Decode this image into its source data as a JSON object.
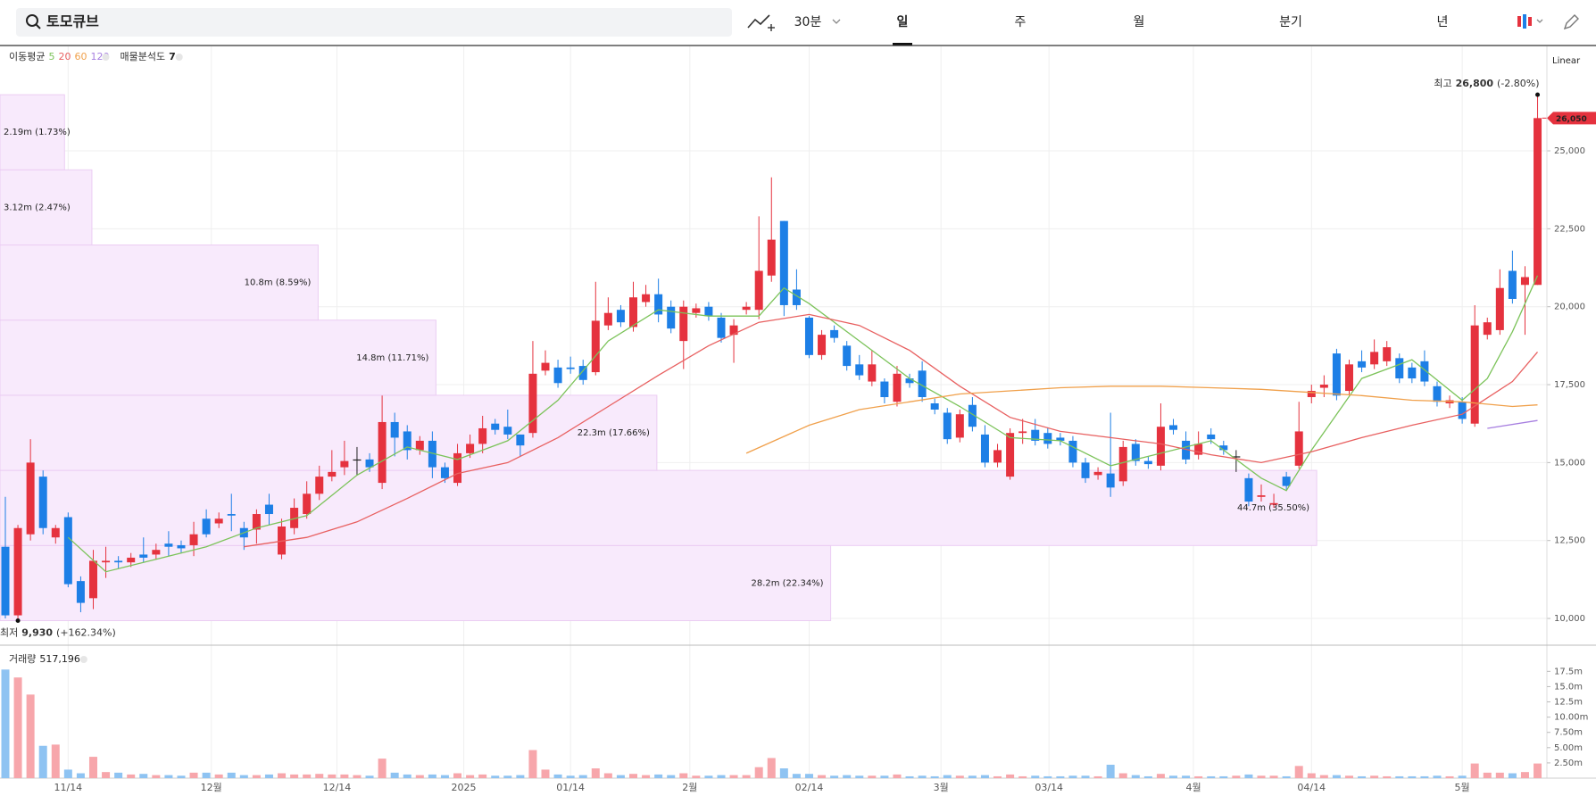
{
  "toolbar": {
    "search": "토모큐브",
    "intervals": [
      "30분",
      "일",
      "주",
      "월",
      "분기",
      "년"
    ],
    "selected": 1
  },
  "chart_data": [
    {
      "type": "candlestick",
      "scale": "Linear",
      "up_color": "#e5323e",
      "down_color": "#1d7fe6",
      "ylim": [
        9200,
        28350
      ],
      "yticks": [
        {
          "value": 10000,
          "label": "10,000"
        },
        {
          "value": 12500,
          "label": "12,500"
        },
        {
          "value": 15000,
          "label": "15,000"
        },
        {
          "value": 17500,
          "label": "17,500"
        },
        {
          "value": 20000,
          "label": "20,000"
        },
        {
          "value": 22500,
          "label": "22,500"
        },
        {
          "value": 25000,
          "label": "25,000"
        }
      ],
      "xticks": [
        {
          "value": 5.0,
          "label": "11/14"
        },
        {
          "value": 16.4,
          "label": "12월"
        },
        {
          "value": 26.4,
          "label": "12/14"
        },
        {
          "value": 36.5,
          "label": "2025"
        },
        {
          "value": 45.0,
          "label": "01/14"
        },
        {
          "value": 54.5,
          "label": "2월"
        },
        {
          "value": 64.0,
          "label": "02/14"
        },
        {
          "value": 74.5,
          "label": "3월"
        },
        {
          "value": 83.1,
          "label": "03/14"
        },
        {
          "value": 94.6,
          "label": "4월"
        },
        {
          "value": 104.0,
          "label": "04/14"
        },
        {
          "value": 116.0,
          "label": "5월"
        }
      ],
      "grid": true,
      "values": [
        [
          12300,
          13900,
          10000,
          10100
        ],
        [
          10100,
          13000,
          9930,
          12900
        ],
        [
          12700,
          15750,
          12500,
          15000
        ],
        [
          14550,
          14750,
          12700,
          12900
        ],
        [
          12600,
          13000,
          12400,
          12900
        ],
        [
          13250,
          13400,
          11000,
          11100
        ],
        [
          11200,
          11350,
          10200,
          10500
        ],
        [
          10650,
          12200,
          10300,
          11850
        ],
        [
          11800,
          12300,
          11300,
          11850
        ],
        [
          11850,
          12000,
          11600,
          11800
        ],
        [
          11800,
          12100,
          11650,
          11950
        ],
        [
          12050,
          12600,
          11800,
          11950
        ],
        [
          12050,
          12400,
          11900,
          12200
        ],
        [
          12400,
          12800,
          12000,
          12300
        ],
        [
          12350,
          12500,
          12100,
          12250
        ],
        [
          12350,
          13100,
          12000,
          12700
        ],
        [
          13200,
          13500,
          12600,
          12700
        ],
        [
          13050,
          13400,
          12900,
          13200
        ],
        [
          13350,
          14000,
          12800,
          13300
        ],
        [
          12900,
          13100,
          12200,
          12600
        ],
        [
          12850,
          13500,
          12400,
          13350
        ],
        [
          13650,
          14000,
          13000,
          13350
        ],
        [
          12050,
          13200,
          11900,
          12950
        ],
        [
          12900,
          13850,
          12700,
          13550
        ],
        [
          13350,
          14400,
          13200,
          14000
        ],
        [
          14000,
          14900,
          13800,
          14550
        ],
        [
          14550,
          15400,
          14400,
          14700
        ],
        [
          14850,
          15700,
          14600,
          15050
        ],
        [
          15100,
          15500,
          14600,
          15100
        ],
        [
          15100,
          15300,
          14700,
          14850
        ],
        [
          14350,
          17150,
          14150,
          16300
        ],
        [
          16300,
          16600,
          15200,
          15800
        ],
        [
          16000,
          16200,
          15100,
          15400
        ],
        [
          15400,
          15850,
          15250,
          15700
        ],
        [
          15700,
          16000,
          14500,
          14850
        ],
        [
          14850,
          15000,
          14350,
          14500
        ],
        [
          14350,
          15600,
          14250,
          15300
        ],
        [
          15300,
          15900,
          15150,
          15600
        ],
        [
          15600,
          16500,
          15300,
          16100
        ],
        [
          16250,
          16400,
          15900,
          16050
        ],
        [
          16150,
          16700,
          15750,
          15900
        ],
        [
          15900,
          15900,
          15200,
          15550
        ],
        [
          15950,
          18900,
          15800,
          17850
        ],
        [
          17950,
          18600,
          17800,
          18200
        ],
        [
          18050,
          18300,
          17400,
          17550
        ],
        [
          18050,
          18400,
          17850,
          18000
        ],
        [
          18100,
          18300,
          17500,
          17650
        ],
        [
          17900,
          20800,
          17800,
          19550
        ],
        [
          19400,
          20300,
          19250,
          19800
        ],
        [
          19900,
          20050,
          19350,
          19500
        ],
        [
          19350,
          20800,
          19200,
          20300
        ],
        [
          20150,
          20700,
          20000,
          20400
        ],
        [
          20400,
          20900,
          19500,
          19750
        ],
        [
          20000,
          20200,
          19150,
          19300
        ],
        [
          18900,
          20200,
          18000,
          20000
        ],
        [
          19800,
          20100,
          19650,
          19950
        ],
        [
          20000,
          20150,
          19550,
          19700
        ],
        [
          19650,
          19800,
          18850,
          19000
        ],
        [
          19100,
          19600,
          18200,
          19400
        ],
        [
          19900,
          20150,
          19750,
          20000
        ],
        [
          19900,
          22900,
          19600,
          21150
        ],
        [
          21000,
          24150,
          20800,
          22150
        ],
        [
          22750,
          22750,
          19700,
          20050
        ],
        [
          20550,
          21200,
          19900,
          20050
        ],
        [
          19650,
          19700,
          18350,
          18450
        ],
        [
          18450,
          19250,
          18300,
          19100
        ],
        [
          19250,
          19400,
          18850,
          19000
        ],
        [
          18750,
          18900,
          17950,
          18100
        ],
        [
          18150,
          18450,
          17650,
          17800
        ],
        [
          17600,
          18600,
          17450,
          18150
        ],
        [
          17600,
          17700,
          16900,
          17100
        ],
        [
          16950,
          18100,
          16800,
          17850
        ],
        [
          17700,
          17850,
          17400,
          17550
        ],
        [
          17950,
          18250,
          16950,
          17100
        ],
        [
          16900,
          17050,
          16550,
          16700
        ],
        [
          16600,
          16750,
          15600,
          15750
        ],
        [
          15800,
          16700,
          15650,
          16550
        ],
        [
          16850,
          17100,
          16000,
          16150
        ],
        [
          15900,
          16200,
          14850,
          15000
        ],
        [
          15000,
          15600,
          14850,
          15400
        ],
        [
          14550,
          16100,
          14450,
          15950
        ],
        [
          15950,
          16400,
          15600,
          16000
        ],
        [
          16050,
          16400,
          15550,
          15700
        ],
        [
          15950,
          16100,
          15450,
          15600
        ],
        [
          15800,
          15950,
          15550,
          15700
        ],
        [
          15700,
          15850,
          14850,
          15000
        ],
        [
          15000,
          15150,
          14350,
          14500
        ],
        [
          14600,
          14850,
          14450,
          14700
        ],
        [
          14650,
          16600,
          13900,
          14200
        ],
        [
          14400,
          15700,
          14250,
          15500
        ],
        [
          15600,
          15750,
          14900,
          15050
        ],
        [
          15050,
          15200,
          14800,
          14950
        ],
        [
          14900,
          16900,
          14750,
          16150
        ],
        [
          16200,
          16400,
          15900,
          16050
        ],
        [
          15700,
          16000,
          14950,
          15100
        ],
        [
          15250,
          16000,
          15100,
          15600
        ],
        [
          15900,
          16100,
          15600,
          15750
        ],
        [
          15550,
          15700,
          15250,
          15400
        ],
        [
          15200,
          15400,
          14700,
          15200
        ],
        [
          14500,
          14650,
          13600,
          13750
        ],
        [
          13900,
          14300,
          13750,
          13950
        ],
        [
          13650,
          14000,
          13550,
          13700
        ],
        [
          14550,
          14700,
          14100,
          14250
        ],
        [
          14900,
          16950,
          14800,
          16000
        ],
        [
          17100,
          17500,
          16900,
          17300
        ],
        [
          17400,
          17800,
          17100,
          17500
        ],
        [
          18500,
          18650,
          17000,
          17150
        ],
        [
          17300,
          18300,
          17150,
          18150
        ],
        [
          18250,
          18600,
          17900,
          18050
        ],
        [
          18150,
          18950,
          18000,
          18550
        ],
        [
          18250,
          18900,
          18100,
          18700
        ],
        [
          18350,
          18500,
          17550,
          17700
        ],
        [
          18050,
          18200,
          17550,
          17700
        ],
        [
          18250,
          18600,
          17450,
          17600
        ],
        [
          17450,
          17600,
          16800,
          16950
        ],
        [
          16900,
          17150,
          16750,
          17000
        ],
        [
          16950,
          17100,
          16250,
          16400
        ],
        [
          16250,
          20050,
          16150,
          19400
        ],
        [
          19100,
          19650,
          18950,
          19500
        ],
        [
          19250,
          21200,
          19100,
          20600
        ],
        [
          21150,
          21800,
          20100,
          20250
        ],
        [
          20700,
          21300,
          19100,
          20950
        ],
        [
          20700,
          26800,
          20700,
          26050
        ]
      ],
      "legend_label": "이동평균",
      "series": [
        {
          "name": "5",
          "color": "#7cc35a",
          "x": [
            5,
            8,
            12,
            16,
            20,
            24,
            28,
            32,
            36,
            40,
            44,
            48,
            52,
            56,
            60,
            62,
            64,
            68,
            72,
            76,
            80,
            84,
            88,
            92,
            96,
            100,
            102,
            104,
            108,
            112,
            116,
            118,
            120,
            122
          ],
          "values": [
            12600,
            11500,
            11900,
            12300,
            12900,
            13300,
            14600,
            15500,
            15100,
            15700,
            17000,
            18900,
            19900,
            19700,
            19700,
            20600,
            20100,
            18900,
            17700,
            16800,
            15800,
            15700,
            14900,
            15300,
            15700,
            14500,
            14100,
            15400,
            17700,
            18300,
            17000,
            17700,
            19200,
            21000
          ]
        },
        {
          "name": "20",
          "color": "#e86060",
          "x": [
            19,
            24,
            28,
            32,
            36,
            40,
            44,
            48,
            52,
            56,
            60,
            64,
            68,
            72,
            76,
            80,
            84,
            88,
            92,
            96,
            100,
            104,
            108,
            112,
            116,
            120,
            122
          ],
          "values": [
            12300,
            12600,
            13100,
            13850,
            14650,
            15000,
            15800,
            16800,
            17800,
            18750,
            19500,
            19750,
            19400,
            18600,
            17450,
            16450,
            16000,
            15800,
            15600,
            15250,
            15000,
            15350,
            15800,
            16200,
            16550,
            17600,
            18550
          ]
        },
        {
          "name": "60",
          "color": "#f0a04b",
          "x": [
            59,
            64,
            68,
            72,
            76,
            80,
            84,
            88,
            92,
            96,
            100,
            104,
            108,
            112,
            116,
            120,
            122
          ],
          "values": [
            15300,
            16200,
            16700,
            16950,
            17200,
            17300,
            17400,
            17450,
            17450,
            17400,
            17350,
            17250,
            17150,
            17000,
            16950,
            16800,
            16850
          ]
        },
        {
          "name": "120",
          "color": "#a77fe0",
          "x": [
            118,
            122
          ],
          "values": [
            16100,
            16350
          ]
        }
      ],
      "profile": {
        "label": "매물분석도",
        "count": 7,
        "color": "#f8eafc",
        "bins": [
          9930,
          12340,
          14750,
          17160,
          19570,
          21980,
          24390,
          26800
        ],
        "values": [
          28.2,
          44.7,
          22.3,
          14.8,
          10.8,
          3.12,
          2.19
        ],
        "value_labels": [
          "28.2m (22.34%)",
          "44.7m (35.50%)",
          "22.3m (17.66%)",
          "14.8m (11.71%)",
          "10.8m (8.59%)",
          "3.12m (2.47%)",
          "2.19m (1.73%)"
        ]
      },
      "high": {
        "label": "최고",
        "x": 122,
        "value": 26800,
        "value_label": "26,800",
        "change": "(-2.80%)"
      },
      "low": {
        "label": "최저",
        "x": 1,
        "value": 9930,
        "value_label": "9,930",
        "change": "(+162.34%)"
      },
      "last": {
        "value": 26050,
        "value_label": "26,050"
      }
    },
    {
      "type": "bar",
      "title": "거래량",
      "last_value": "517,196",
      "ylim": [
        0,
        21.5
      ],
      "yticks": [
        {
          "value": 2.5,
          "label": "2.50m"
        },
        {
          "value": 5,
          "label": "5.00m"
        },
        {
          "value": 7.5,
          "label": "7.50m"
        },
        {
          "value": 10,
          "label": "10.00m"
        },
        {
          "value": 12.5,
          "label": "12.5m"
        },
        {
          "value": 15,
          "label": "15.0m"
        },
        {
          "value": 17.5,
          "label": "17.5m"
        }
      ],
      "up_color": "#f7a6ab",
      "down_color": "#8ec3f2",
      "values": [
        17.8,
        16.5,
        13.7,
        5.3,
        5.5,
        1.4,
        0.8,
        3.5,
        1.0,
        0.9,
        0.6,
        0.7,
        0.5,
        0.5,
        0.4,
        0.9,
        0.9,
        0.6,
        0.9,
        0.5,
        0.5,
        0.6,
        0.8,
        0.6,
        0.6,
        0.7,
        0.6,
        0.6,
        0.5,
        0.4,
        3.2,
        0.9,
        0.6,
        0.5,
        0.6,
        0.5,
        0.8,
        0.5,
        0.6,
        0.4,
        0.4,
        0.5,
        4.6,
        1.4,
        0.6,
        0.4,
        0.5,
        1.6,
        0.8,
        0.5,
        0.7,
        0.5,
        0.6,
        0.5,
        0.8,
        0.4,
        0.4,
        0.5,
        0.5,
        0.5,
        1.8,
        3.3,
        1.6,
        0.7,
        0.7,
        0.5,
        0.4,
        0.5,
        0.4,
        0.4,
        0.4,
        0.6,
        0.3,
        0.4,
        0.3,
        0.5,
        0.4,
        0.4,
        0.5,
        0.3,
        0.6,
        0.3,
        0.4,
        0.3,
        0.3,
        0.4,
        0.4,
        0.3,
        2.2,
        0.8,
        0.5,
        0.3,
        0.7,
        0.4,
        0.4,
        0.3,
        0.3,
        0.3,
        0.4,
        0.6,
        0.4,
        0.4,
        0.3,
        2.0,
        0.8,
        0.5,
        0.5,
        0.4,
        0.3,
        0.4,
        0.3,
        0.3,
        0.3,
        0.3,
        0.4,
        0.3,
        0.4,
        2.4,
        0.9,
        0.9,
        0.8,
        1.0,
        2.4
      ]
    }
  ]
}
